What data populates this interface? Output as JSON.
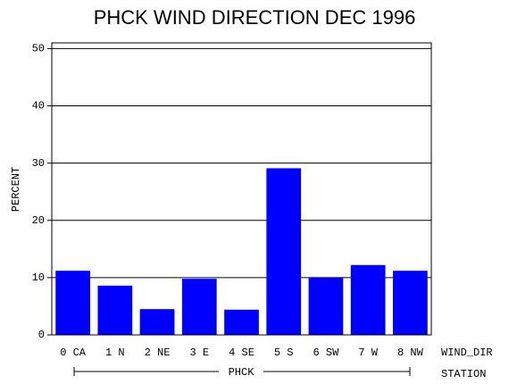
{
  "chart_data": {
    "type": "bar",
    "title": "PHCK WIND DIRECTION DEC 1996",
    "y_label": "PERCENT",
    "x_label": "WIND_DIR",
    "group_axis_label": "STATION",
    "group": "PHCK",
    "categories": [
      "0 CA",
      "1 N",
      "2 NE",
      "3 E",
      "4 SE",
      "5 S",
      "6 SW",
      "7 W",
      "8 NW"
    ],
    "values": [
      11.2,
      8.6,
      4.5,
      9.8,
      4.4,
      29.1,
      10.0,
      12.2,
      11.2
    ],
    "color": "#0000ff",
    "ylim": [
      0,
      51
    ],
    "yticks": [
      0,
      10,
      20,
      30,
      40,
      50
    ],
    "grid": true
  }
}
